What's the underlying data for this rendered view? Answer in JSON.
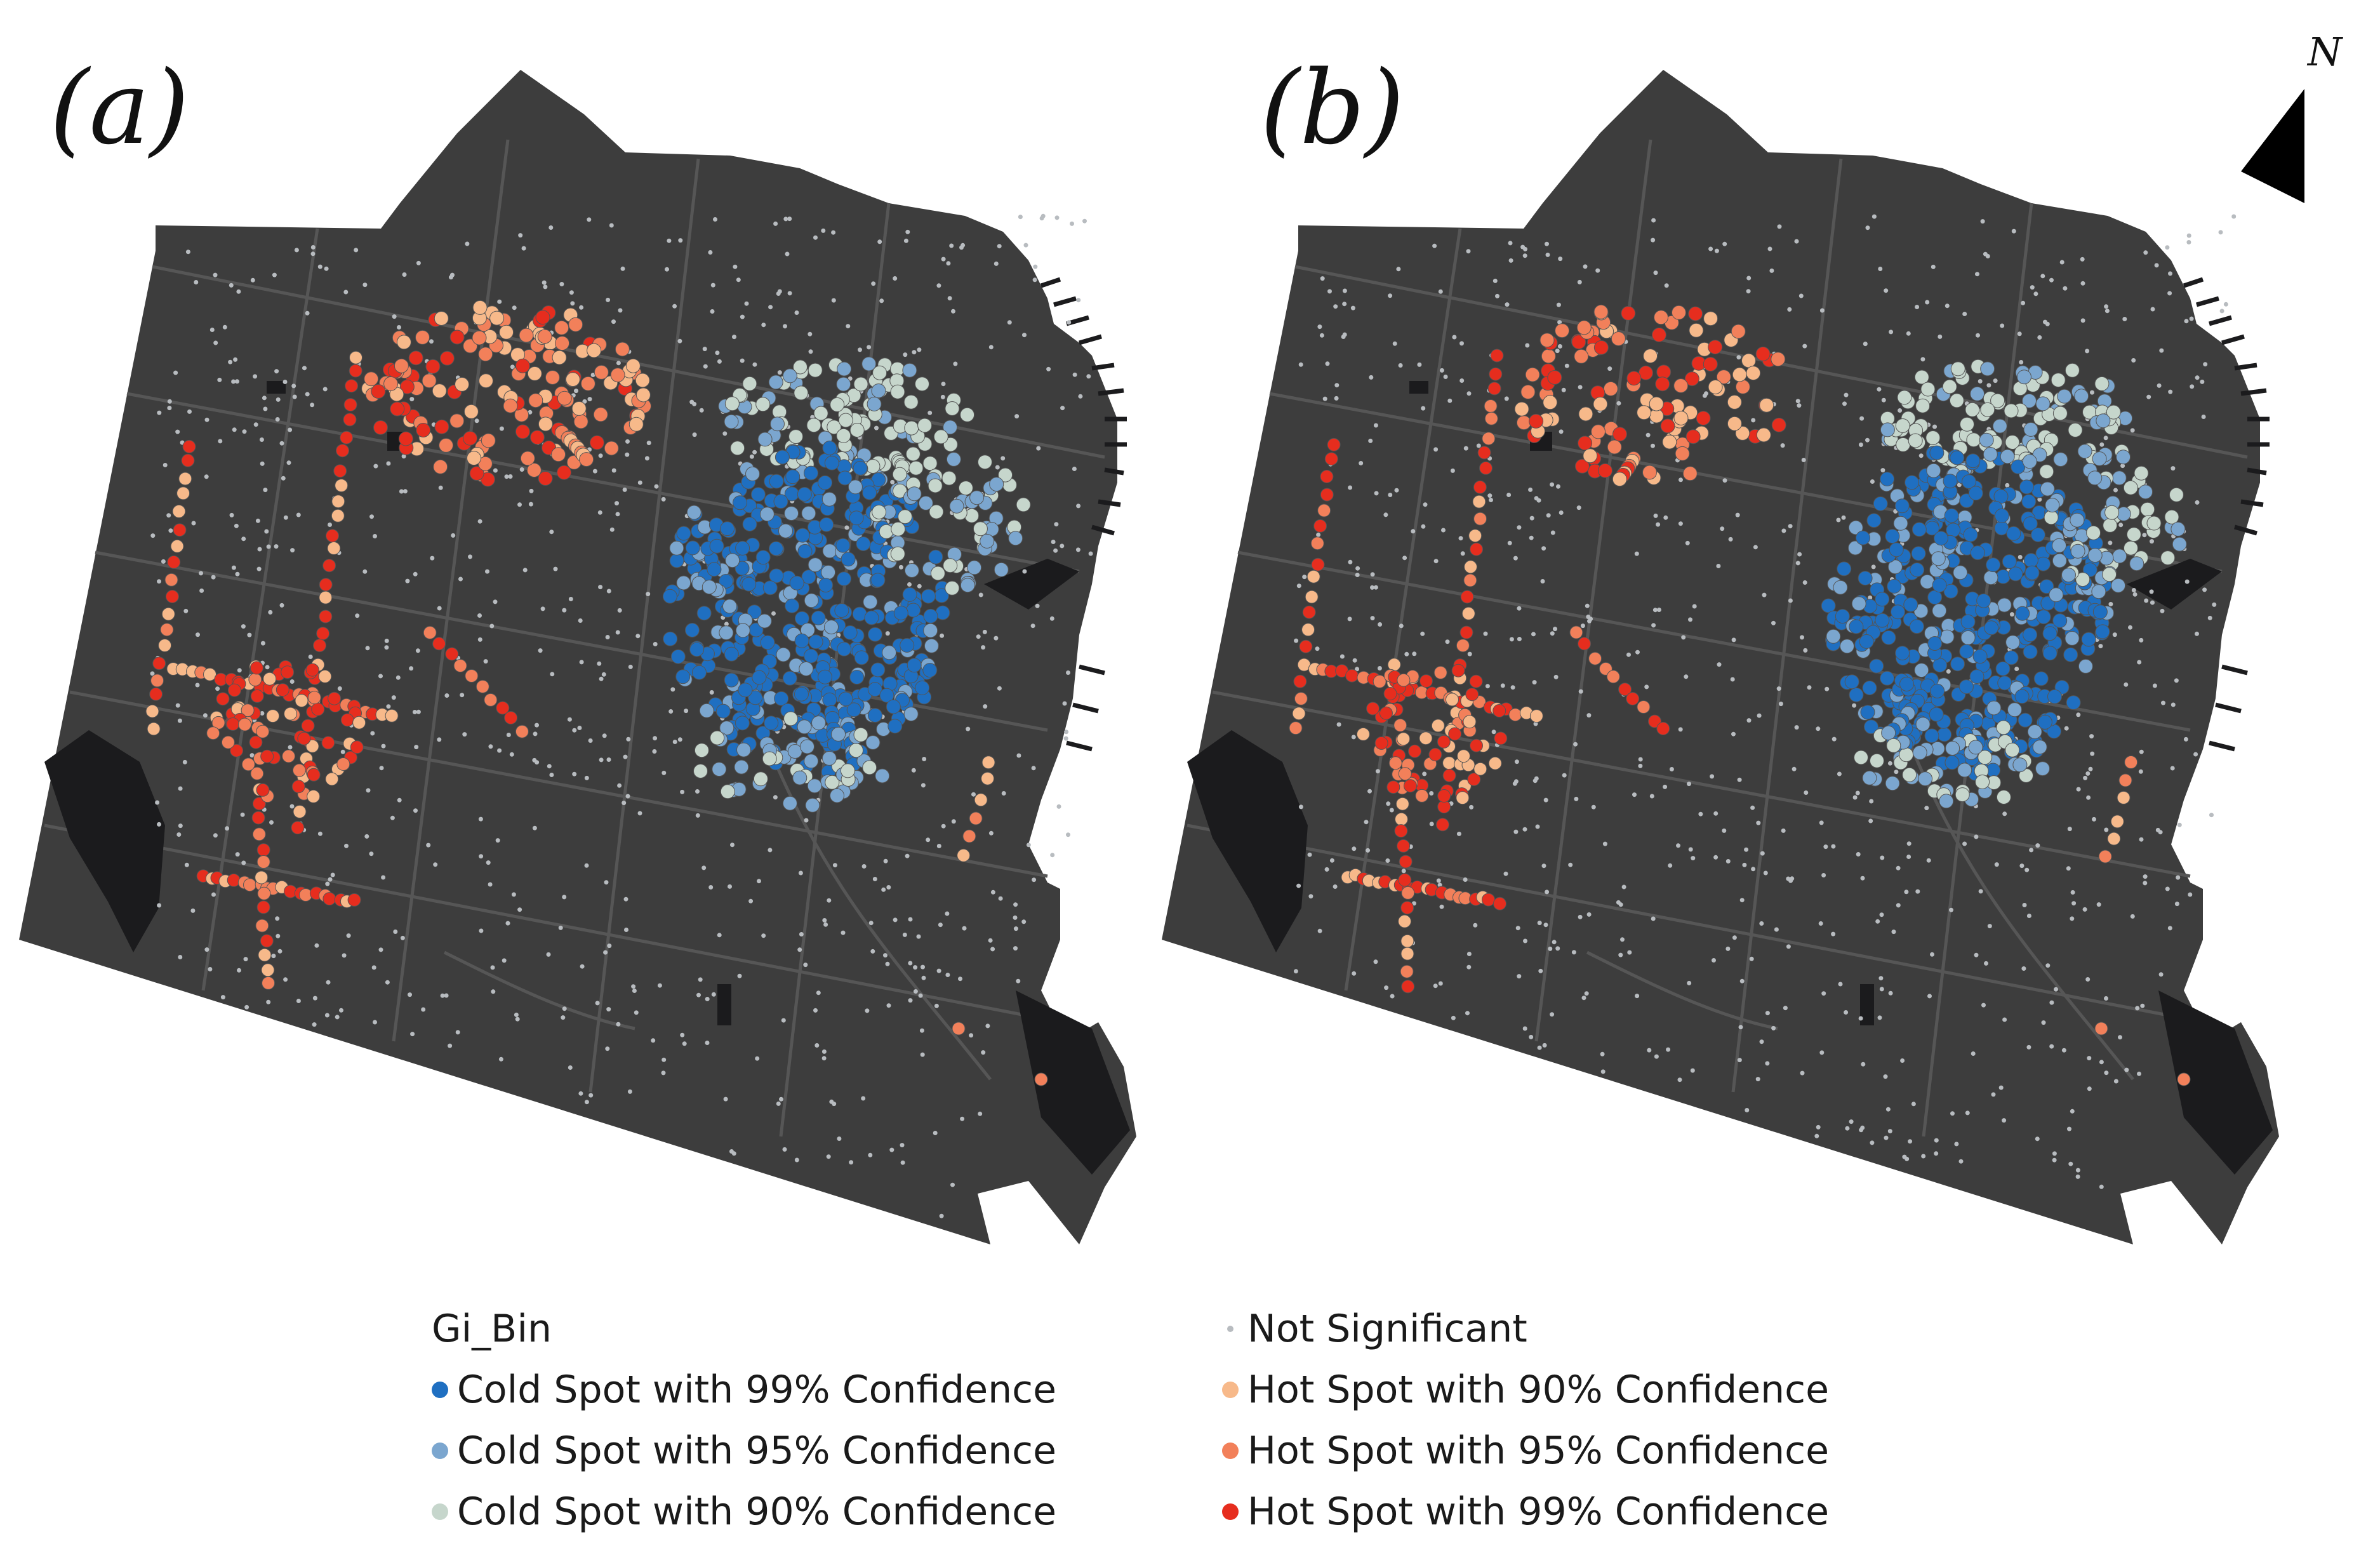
{
  "panels": [
    {
      "label": "(a)"
    },
    {
      "label": "(b)"
    }
  ],
  "north_arrow": {
    "letter": "N"
  },
  "legend": {
    "title": "Gi_Bin",
    "items": [
      {
        "label": "Cold Spot with 99% Confidence",
        "color": "#1f6fc1"
      },
      {
        "label": "Cold Spot with 95% Confidence",
        "color": "#7ba6cf"
      },
      {
        "label": "Cold Spot with 90% Confidence",
        "color": "#c6d6cc"
      },
      {
        "label": "Not Significant",
        "color": "#b8bcc0"
      },
      {
        "label": "Hot Spot with 90% Confidence",
        "color": "#f7b98a"
      },
      {
        "label": "Hot Spot with 95% Confidence",
        "color": "#f2805a"
      },
      {
        "label": "Hot Spot with 99% Confidence",
        "color": "#e62d1e"
      }
    ]
  },
  "colors": {
    "land": "#3d3d3d",
    "street": "#565656",
    "park": "#1b1b1d"
  }
}
